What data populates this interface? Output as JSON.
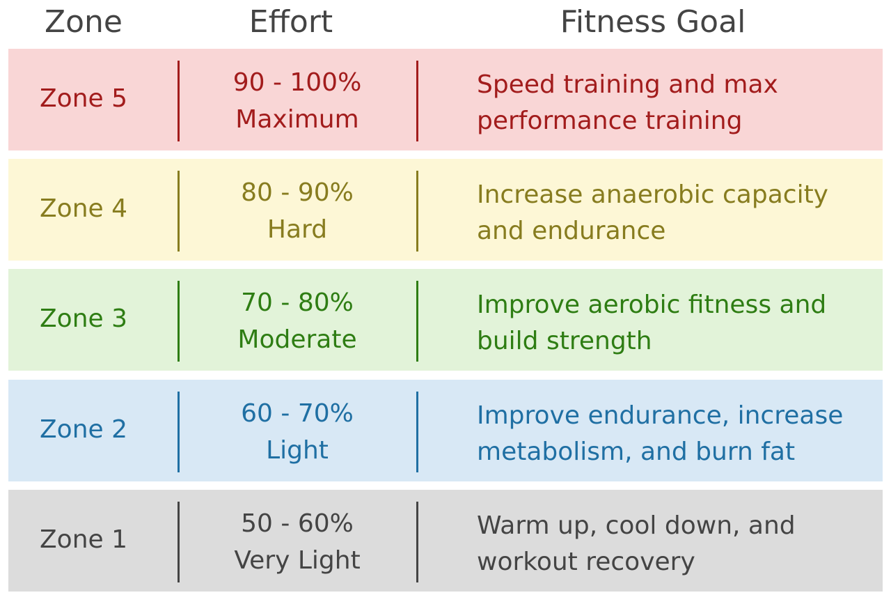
{
  "header": {
    "zone": "Zone",
    "effort": "Effort",
    "goal": "Fitness Goal"
  },
  "rows": [
    {
      "zone": "Zone 5",
      "effort": [
        "90 - 100%",
        "Maximum"
      ],
      "goal": [
        "Speed training and max",
        "performance training"
      ]
    },
    {
      "zone": "Zone 4",
      "effort": [
        "80 - 90%",
        "Hard"
      ],
      "goal": [
        "Increase anaerobic capacity",
        "and endurance"
      ]
    },
    {
      "zone": "Zone 3",
      "effort": [
        "70 - 80%",
        "Moderate"
      ],
      "goal": [
        "Improve aerobic fitness and",
        "build strength"
      ]
    },
    {
      "zone": "Zone 2",
      "effort": [
        "60 - 70%",
        "Light"
      ],
      "goal": [
        "Improve endurance, increase",
        "metabolism, and burn fat"
      ]
    },
    {
      "zone": "Zone 1",
      "effort": [
        "50 - 60%",
        "Very Light"
      ],
      "goal": [
        "Warm up, cool down, and",
        "workout recovery"
      ]
    }
  ]
}
